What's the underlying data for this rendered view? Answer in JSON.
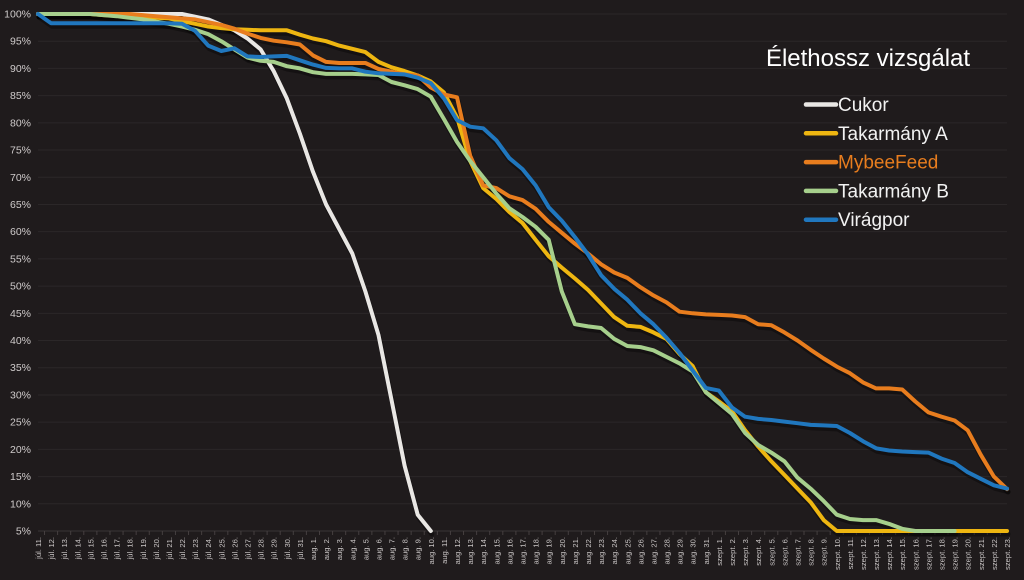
{
  "title": "Élethossz vizsgálat",
  "colors": {
    "background": "#1f1b1c",
    "gridline": "#2b2728",
    "axis_line": "#3a3536",
    "tick_mark": "#453f40",
    "axis_text": "#c9c5c5",
    "title_text": "#ffffff"
  },
  "legend": {
    "position": "right",
    "items": [
      {
        "id": "cukor",
        "label": "Cukor",
        "color": "#e9e7e4",
        "label_color": "#f2f2f2"
      },
      {
        "id": "takarmany-a",
        "label": "Takarmány A",
        "color": "#eeb611",
        "label_color": "#f2f2f2"
      },
      {
        "id": "mybeefeed",
        "label": "MybeeFeed",
        "color": "#e87d1e",
        "label_color": "#e87d1e"
      },
      {
        "id": "takarmany-b",
        "label": "Takarmány B",
        "color": "#a6cf8c",
        "label_color": "#f2f2f2"
      },
      {
        "id": "viragpor",
        "label": "Virágpor",
        "color": "#2077be",
        "label_color": "#f2f2f2"
      }
    ]
  },
  "chart_data": {
    "type": "line",
    "title": "Élethossz vizsgálat",
    "xlabel": "",
    "ylabel": "",
    "ylim": [
      5,
      100
    ],
    "grid": true,
    "legend_position": "right",
    "y_ticks": [
      100,
      95,
      90,
      85,
      80,
      75,
      70,
      65,
      60,
      55,
      50,
      45,
      40,
      35,
      30,
      25,
      20,
      15,
      10,
      5
    ],
    "y_tick_labels": [
      "100%",
      "95%",
      "90%",
      "85%",
      "80%",
      "75%",
      "70%",
      "65%",
      "60%",
      "55%",
      "50%",
      "45%",
      "40%",
      "35%",
      "30%",
      "25%",
      "20%",
      "15%",
      "10%",
      "5%"
    ],
    "x_labels": [
      "júl. 11.",
      "júl. 12.",
      "júl. 13.",
      "júl. 14.",
      "júl. 15.",
      "júl. 16.",
      "júl. 17.",
      "júl. 18.",
      "júl. 19.",
      "júl. 20.",
      "júl. 21.",
      "júl. 22.",
      "júl. 23.",
      "júl. 24.",
      "júl. 25.",
      "júl. 26.",
      "júl. 27.",
      "júl. 28.",
      "júl. 29.",
      "júl. 30.",
      "júl. 31.",
      "aug. 1.",
      "aug. 2.",
      "aug. 3.",
      "aug. 4.",
      "aug. 5.",
      "aug. 6.",
      "aug. 7.",
      "aug. 8.",
      "aug. 9.",
      "aug. 10.",
      "aug. 11.",
      "aug. 12.",
      "aug. 13.",
      "aug. 14.",
      "aug. 15.",
      "aug. 16.",
      "aug. 17.",
      "aug. 18.",
      "aug. 19.",
      "aug. 20.",
      "aug. 21.",
      "aug. 22.",
      "aug. 23.",
      "aug. 24.",
      "aug. 25.",
      "aug. 26.",
      "aug. 27.",
      "aug. 28.",
      "aug. 29.",
      "aug. 30.",
      "aug. 31.",
      "szept. 1.",
      "szept. 2.",
      "szept. 3.",
      "szept. 4.",
      "szept. 5.",
      "szept. 6.",
      "szept. 7.",
      "szept. 8.",
      "szept. 9.",
      "szept. 10.",
      "szept. 11.",
      "szept. 12.",
      "szept. 13.",
      "szept. 14.",
      "szept. 15.",
      "szept. 16.",
      "szept. 17.",
      "szept. 18.",
      "szept. 19.",
      "szept. 20.",
      "szept. 21.",
      "szept. 22.",
      "szept. 23."
    ],
    "series": [
      {
        "name": "Cukor",
        "color": "#e9e7e4",
        "values": [
          100,
          100,
          100,
          100,
          100,
          100,
          100,
          100,
          100,
          100,
          100,
          100,
          99.5,
          99,
          98,
          97,
          95.5,
          93.5,
          89.5,
          84.5,
          78,
          71,
          65,
          60.5,
          56,
          49,
          41,
          29,
          17,
          8,
          5,
          null,
          null,
          null,
          null,
          null,
          null,
          null,
          null,
          null,
          null,
          null,
          null,
          null,
          null,
          null,
          null,
          null,
          null,
          null,
          null,
          null,
          null,
          null,
          null,
          null,
          null,
          null,
          null,
          null,
          null,
          null,
          null,
          null,
          null,
          null,
          null,
          null,
          null,
          null,
          null,
          null,
          null,
          null,
          null
        ]
      },
      {
        "name": "Takarmány A",
        "color": "#eeb611",
        "values": [
          100,
          100,
          100,
          100,
          100,
          99.8,
          99.7,
          99.5,
          99.4,
          99.3,
          99.2,
          98.7,
          98.2,
          97.7,
          97.4,
          97.2,
          97.1,
          97,
          97,
          97,
          96.2,
          95.5,
          95,
          94.2,
          93.6,
          93,
          91.2,
          90.2,
          89.5,
          88.7,
          87.6,
          85.6,
          81,
          73,
          68,
          66,
          63.6,
          61.6,
          58.5,
          55.5,
          53.4,
          51.4,
          49.3,
          46.8,
          44.3,
          42.7,
          42.5,
          41.5,
          40.3,
          37.5,
          35.3,
          30.5,
          28.8,
          27,
          23.5,
          20.5,
          17.8,
          15.3,
          12.8,
          10.3,
          7,
          5,
          5,
          5,
          5,
          5,
          5,
          5,
          5,
          5,
          5,
          5,
          5,
          5,
          5
        ]
      },
      {
        "name": "MybeeFeed",
        "color": "#e87d1e",
        "values": [
          100,
          100,
          100,
          100,
          100,
          100,
          100,
          100,
          99.8,
          99.6,
          99.4,
          99.2,
          99,
          98.5,
          98,
          97.3,
          96.4,
          95.6,
          95.1,
          94.8,
          94.4,
          92.4,
          91.2,
          91,
          91,
          91,
          89.9,
          89.4,
          88.9,
          88.7,
          86.5,
          85.2,
          84.7,
          74,
          68.5,
          68,
          66.5,
          65.8,
          64.2,
          61.8,
          59.8,
          57.8,
          56,
          54,
          52.5,
          51.5,
          49.8,
          48.3,
          47,
          45.3,
          45,
          44.8,
          44.7,
          44.6,
          44.3,
          43,
          42.8,
          41.5,
          40,
          38.3,
          36.7,
          35.2,
          34,
          32.3,
          31.2,
          31.2,
          31,
          28.8,
          26.8,
          26,
          25.3,
          23.5,
          19,
          15,
          12.7
        ]
      },
      {
        "name": "Takarmány B",
        "color": "#a6cf8c",
        "values": [
          100,
          100,
          100,
          100,
          100,
          99.8,
          99.6,
          99.3,
          99,
          98.6,
          98.2,
          97.7,
          97.1,
          96.3,
          95,
          93.5,
          92,
          91.4,
          91.2,
          90.4,
          90,
          89.3,
          89,
          89,
          89,
          88.9,
          88.8,
          87.5,
          86.9,
          86.2,
          84.8,
          80.7,
          76.5,
          73,
          70,
          67,
          64.3,
          62.7,
          60.9,
          58.5,
          49,
          43,
          42.6,
          42.3,
          40.3,
          39,
          38.8,
          38.2,
          37,
          35.8,
          34.3,
          30.5,
          28.5,
          26.5,
          23,
          20.8,
          19.4,
          17.8,
          14.8,
          12.8,
          10.5,
          8,
          7.2,
          7,
          7,
          6.3,
          5.4,
          5,
          5,
          5,
          5,
          null,
          null,
          null,
          null
        ]
      },
      {
        "name": "Virágpor",
        "color": "#2077be",
        "values": [
          100,
          98.3,
          98.3,
          98.3,
          98.3,
          98.3,
          98.3,
          98.3,
          98.3,
          98.3,
          98.3,
          98.2,
          96.9,
          94.2,
          93.2,
          93.7,
          92.2,
          92.1,
          92.2,
          92.3,
          91.5,
          90.7,
          90.1,
          90,
          90,
          89.4,
          89.1,
          89,
          88.9,
          88.3,
          87.3,
          84.5,
          80.5,
          79.3,
          79,
          76.8,
          73.5,
          71.5,
          68.5,
          64.5,
          62,
          59,
          55.8,
          52,
          49.5,
          47.5,
          45,
          43,
          40.5,
          37.7,
          34.5,
          31.3,
          30.8,
          27.7,
          26,
          25.6,
          25.4,
          25.1,
          24.8,
          24.5,
          24.4,
          24.3,
          23,
          21.5,
          20.2,
          19.8,
          19.6,
          19.5,
          19.4,
          18.3,
          17.5,
          15.8,
          14.6,
          13.4,
          12.8
        ]
      }
    ]
  }
}
